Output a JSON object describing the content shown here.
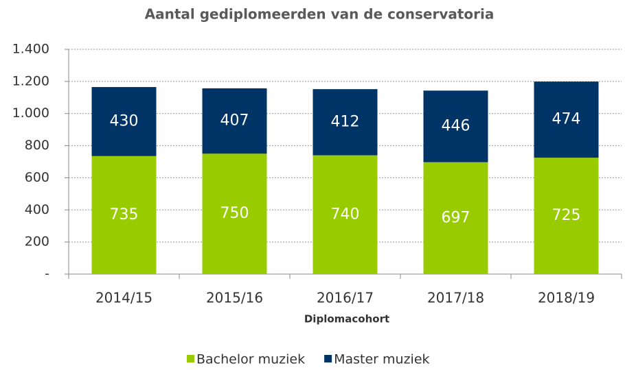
{
  "chart_data": {
    "type": "stacked_bar",
    "title": "Aantal gediplomeerden van de conservatoria",
    "x_label": "Diplomacohort",
    "categories": [
      "2014/15",
      "2015/16",
      "2016/17",
      "2017/18",
      "2018/19"
    ],
    "series": [
      {
        "name": "Bachelor muziek",
        "color": "#99cc00",
        "values": [
          735,
          750,
          740,
          697,
          725
        ]
      },
      {
        "name": "Master muziek",
        "color": "#003366",
        "values": [
          430,
          407,
          412,
          446,
          474
        ]
      }
    ],
    "ylim": [
      0,
      1400
    ],
    "yticks": [
      {
        "value": 0,
        "label": "-"
      },
      200,
      400,
      600,
      800,
      {
        "value": 1000,
        "label": "1.000"
      },
      {
        "value": 1200,
        "label": "1.200"
      },
      {
        "value": 1400,
        "label": "1.400"
      }
    ],
    "grid": true,
    "legend": "bottom"
  }
}
